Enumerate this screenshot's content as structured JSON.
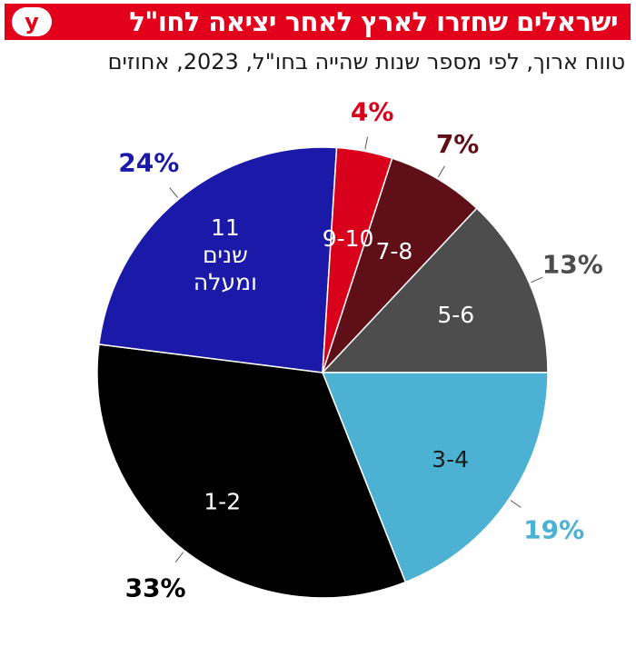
{
  "header": {
    "title": "ישראלים שחזרו לארץ לאחר יציאה לחו\"ל",
    "logo": "y"
  },
  "subtitle": "טווח ארוך, לפי מספר שנות שהייה בחו\"ל, 2023, אחוזים",
  "chart_data": {
    "type": "pie",
    "unit": "%",
    "start_angle_deg": 18,
    "direction": "clockwise",
    "slices": [
      {
        "label": "7-8",
        "value": 7,
        "pct_label": "7%",
        "color": "#5e0f17",
        "pct_color": "#5e0f17",
        "text_color": "#ffffff"
      },
      {
        "label": "5-6",
        "value": 13,
        "pct_label": "13%",
        "color": "#4d4d4d",
        "pct_color": "#4d4d4d",
        "text_color": "#ffffff"
      },
      {
        "label": "3-4",
        "value": 19,
        "pct_label": "19%",
        "color": "#4cb1d3",
        "pct_color": "#4cb1d3",
        "text_color": "#1b1b1b"
      },
      {
        "label": "1-2",
        "value": 33,
        "pct_label": "33%",
        "color": "#000000",
        "pct_color": "#000000",
        "text_color": "#ffffff"
      },
      {
        "label": [
          "11",
          "שנים",
          "ומעלה"
        ],
        "value": 24,
        "pct_label": "24%",
        "color": "#1a19a8",
        "pct_color": "#1a19a8",
        "text_color": "#ffffff"
      },
      {
        "label": "9-10",
        "value": 4,
        "pct_label": "4%",
        "color": "#d9001b",
        "pct_color": "#d9001b",
        "text_color": "#ffffff"
      }
    ]
  }
}
